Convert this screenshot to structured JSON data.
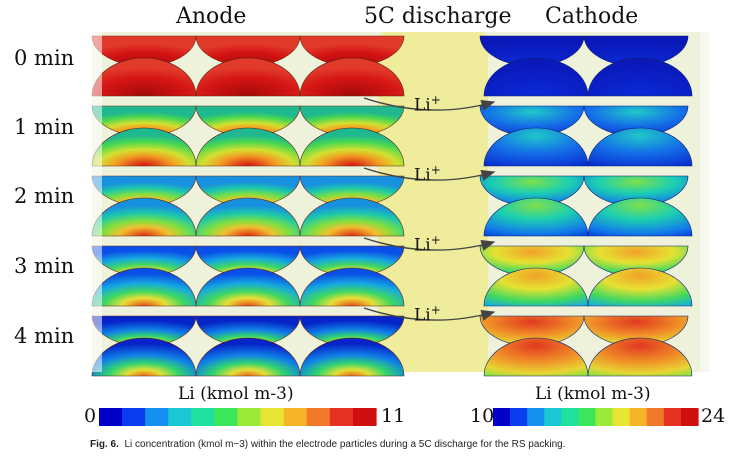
{
  "headers": {
    "anode": "Anode",
    "middle": "5C discharge",
    "cathode": "Cathode"
  },
  "times": [
    "0 min",
    "1 min",
    "2 min",
    "3 min",
    "4 min"
  ],
  "ion_label": "Li",
  "ion_charge": "+",
  "scales": {
    "anode": {
      "title": "Li (kmol m-3)",
      "min": "0",
      "max": "11"
    },
    "cathode": {
      "title": "Li (kmol m-3)",
      "min": "10",
      "max": "24"
    }
  },
  "caption": {
    "fig": "Fig. 6.",
    "text": "Li concentration (kmol m−3) within the electrode particles during a 5C discharge for the RS packing."
  },
  "colors": {
    "electrolyte": "#efec9c",
    "background": "#eef2da",
    "ramp": [
      "#0000c8",
      "#0a3df0",
      "#1490f0",
      "#19c8d2",
      "#1ee1a0",
      "#3ce65a",
      "#9bea37",
      "#e6e632",
      "#f5b428",
      "#f07828",
      "#e63223",
      "#cd0f0f"
    ]
  }
}
